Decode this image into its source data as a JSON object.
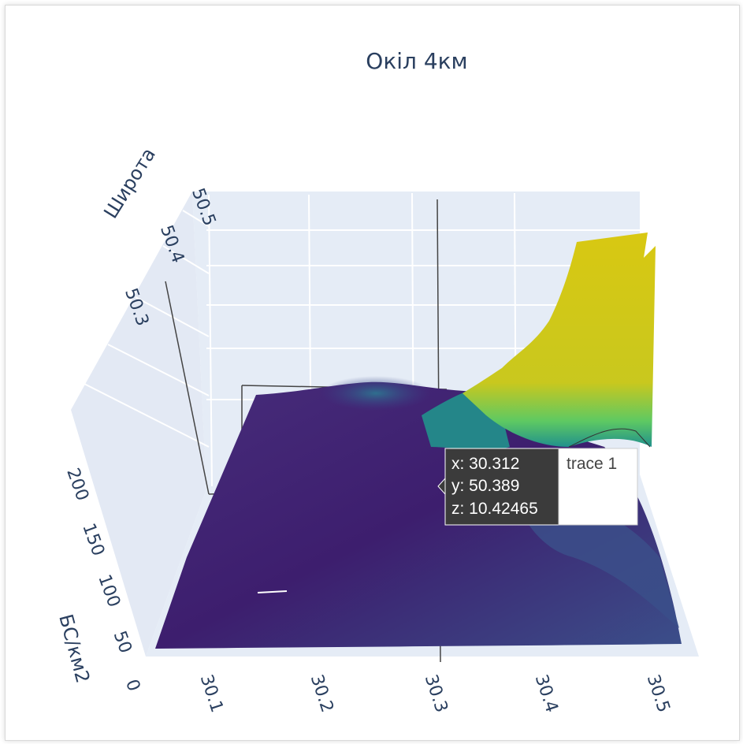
{
  "chart_data": {
    "type": "surface",
    "title": "Окіл 4км",
    "x_axis": {
      "label": "",
      "ticks": [
        "30.1",
        "30.2",
        "30.3",
        "30.4",
        "30.5"
      ]
    },
    "y_axis": {
      "label": "Широта",
      "ticks": [
        "50.3",
        "50.4",
        "50.5"
      ]
    },
    "z_axis": {
      "label": "БС/км2",
      "ticks": [
        "0",
        "50",
        "100",
        "150",
        "200"
      ]
    },
    "colorscale": [
      "#440154",
      "#3b528b",
      "#21918c",
      "#5ec962",
      "#fde725"
    ],
    "hover": {
      "x": "x: 30.312",
      "y": "y: 50.389",
      "z": "z: 10.42465",
      "trace": "trace 1"
    }
  }
}
